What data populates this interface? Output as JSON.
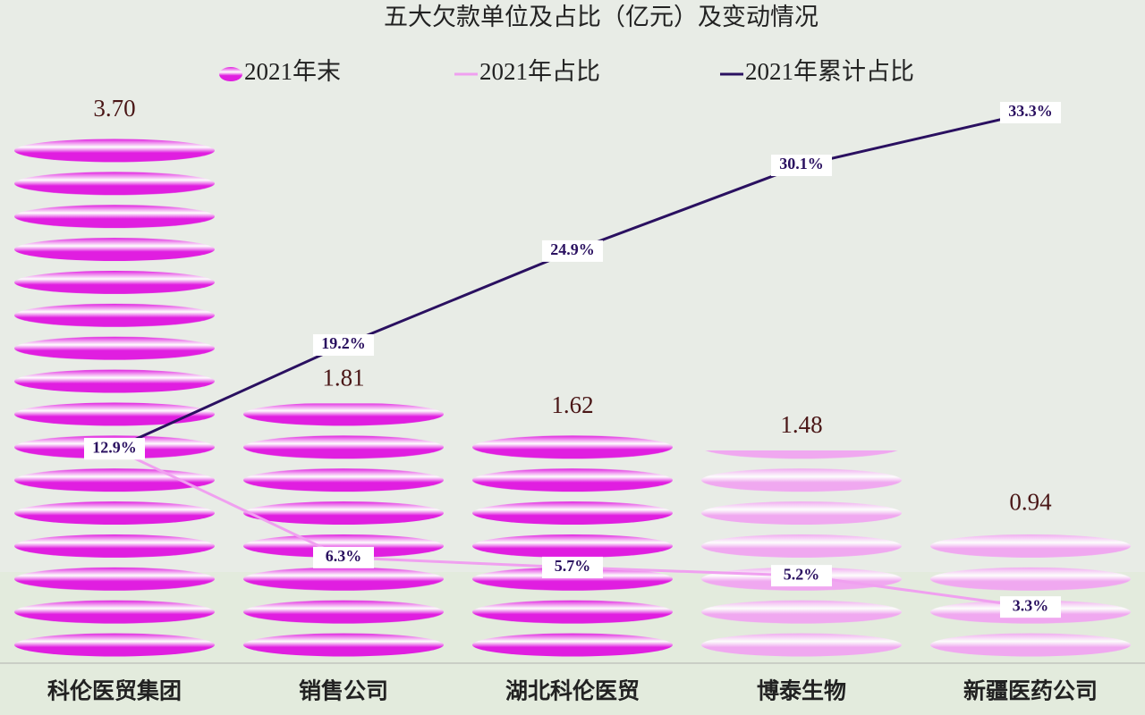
{
  "chart_data": {
    "type": "combo",
    "title": "五大欠款单位及占比（亿元）及变动情况",
    "categories": [
      "科伦医贸集团",
      "销售公司",
      "湖北科伦医贸",
      "博泰生物",
      "新疆医药公司"
    ],
    "series": [
      {
        "name": "2021年末",
        "type": "bar",
        "colors": [
          "#e01ee0",
          "#e01ee0",
          "#e01ee0",
          "#f0a8f0",
          "#f0a8f0"
        ],
        "values": [
          3.7,
          1.81,
          1.62,
          1.48,
          0.94
        ],
        "value_labels": [
          "3.70",
          "1.81",
          "1.62",
          "1.48",
          "0.94"
        ]
      },
      {
        "name": "2021年占比",
        "type": "line",
        "axis": "y2",
        "color": "#f0a0f0",
        "values": [
          12.9,
          6.3,
          5.7,
          5.2,
          3.3
        ],
        "value_labels": [
          "12.9%",
          "6.3%",
          "5.7%",
          "5.2%",
          "3.3%"
        ]
      },
      {
        "name": "2021年累计占比",
        "type": "line",
        "axis": "y2",
        "color": "#2a1060",
        "values": [
          12.9,
          19.2,
          24.9,
          30.1,
          33.3
        ],
        "value_labels": [
          "12.9%",
          "19.2%",
          "24.9%",
          "30.1%",
          "33.3%"
        ]
      }
    ],
    "ylim": [
      0,
      3.7
    ],
    "y2lim": [
      0,
      32
    ]
  }
}
